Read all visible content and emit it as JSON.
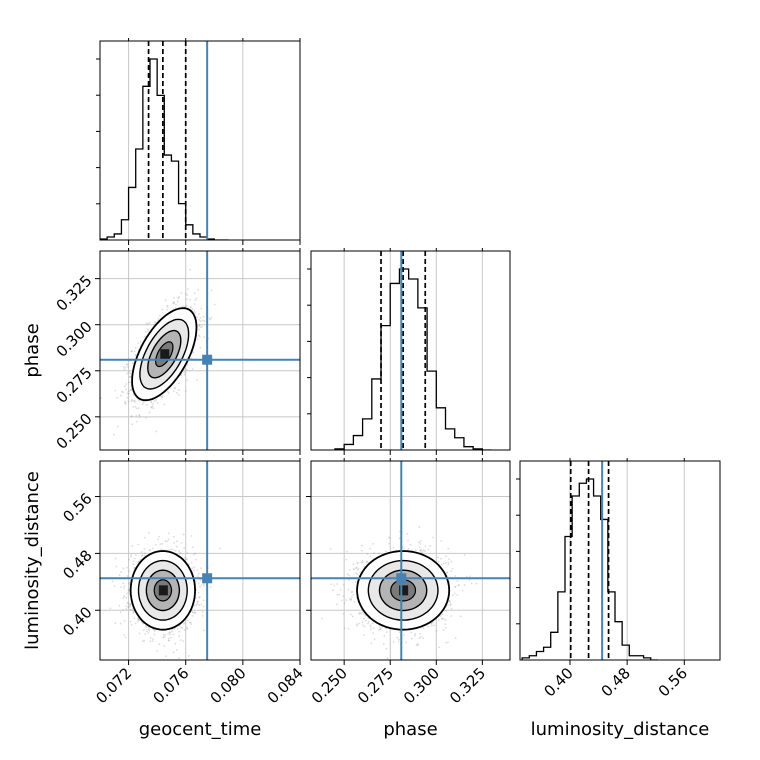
{
  "chart_data": {
    "type": "corner",
    "parameters": [
      "geocent_time",
      "phase",
      "luminosity_distance"
    ],
    "truths": {
      "geocent_time": 0.0775,
      "phase": 0.281,
      "luminosity_distance": 0.445
    },
    "colors": {
      "truth": "#4682b4",
      "hist": "#000000",
      "grid": "#c8c8c8",
      "samples": "#9a9a9a"
    },
    "grid": true,
    "quantiles": {
      "geocent_time": [
        0.0734,
        0.0744,
        0.076
      ],
      "phase": [
        0.27,
        0.282,
        0.294
      ],
      "luminosity_distance": [
        0.401,
        0.426,
        0.454
      ]
    },
    "histograms": {
      "geocent_time": {
        "range": [
          0.07,
          0.084
        ],
        "bin_edges": [
          0.07,
          0.0705,
          0.071,
          0.0715,
          0.072,
          0.0725,
          0.073,
          0.0735,
          0.074,
          0.0745,
          0.075,
          0.0755,
          0.076,
          0.0765,
          0.077,
          0.0775,
          0.078,
          0.0785,
          0.079
        ],
        "counts": [
          1,
          3,
          6,
          20,
          52,
          90,
          152,
          179,
          143,
          84,
          78,
          36,
          15,
          6,
          3,
          1,
          0,
          0
        ]
      },
      "phase": {
        "range": [
          0.232,
          0.34
        ],
        "bin_edges": [
          0.245,
          0.25,
          0.255,
          0.26,
          0.265,
          0.27,
          0.275,
          0.28,
          0.285,
          0.29,
          0.295,
          0.3,
          0.305,
          0.31,
          0.315,
          0.32,
          0.325,
          0.33
        ],
        "counts": [
          1,
          5,
          13,
          28,
          64,
          112,
          150,
          163,
          154,
          128,
          71,
          38,
          19,
          11,
          3,
          1,
          0
        ]
      },
      "luminosity_distance": {
        "range": [
          0.33,
          0.61
        ],
        "bin_edges": [
          0.333,
          0.343,
          0.353,
          0.363,
          0.373,
          0.383,
          0.393,
          0.403,
          0.413,
          0.423,
          0.433,
          0.443,
          0.453,
          0.463,
          0.473,
          0.483,
          0.493,
          0.503,
          0.513,
          0.523
        ],
        "counts": [
          1,
          2,
          4,
          6,
          13,
          32,
          58,
          77,
          83,
          85,
          77,
          66,
          32,
          18,
          7,
          2,
          2,
          1,
          0
        ]
      }
    },
    "axes": {
      "geocent_time": {
        "range": [
          0.07,
          0.084
        ],
        "ticks": [
          "0.072",
          "0.076",
          "0.080",
          "0.084"
        ]
      },
      "phase": {
        "range": [
          0.232,
          0.34
        ],
        "ticks": [
          "0.250",
          "0.275",
          "0.300",
          "0.325"
        ]
      },
      "luminosity_distance": {
        "range": [
          0.33,
          0.61
        ],
        "ticks": [
          "0.40",
          "0.48",
          "0.56"
        ]
      }
    },
    "panels_2d": [
      {
        "x": "geocent_time",
        "y": "phase",
        "center": [
          0.0745,
          0.284
        ],
        "sigma": [
          0.0011,
          0.0122
        ],
        "rho": 0.58
      },
      {
        "x": "geocent_time",
        "y": "luminosity_distance",
        "center": [
          0.0744,
          0.428
        ],
        "sigma": [
          0.0011,
          0.027
        ],
        "rho": 0.0
      },
      {
        "x": "phase",
        "y": "luminosity_distance",
        "center": [
          0.282,
          0.428
        ],
        "sigma": [
          0.0122,
          0.027
        ],
        "rho": 0.0
      }
    ],
    "xlabels": [
      "geocent_time",
      "phase",
      "luminosity_distance"
    ],
    "ylabels": [
      "",
      "phase",
      "luminosity_distance"
    ]
  }
}
